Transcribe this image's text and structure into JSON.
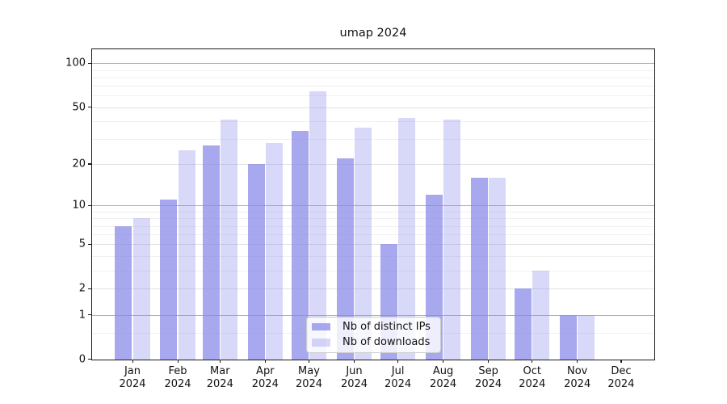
{
  "title": "umap 2024",
  "legend": {
    "items": [
      {
        "label": "Nb of distinct IPs",
        "series": "ips"
      },
      {
        "label": "Nb of downloads",
        "series": "downloads"
      }
    ]
  },
  "y_axis": {
    "tick_values": [
      0,
      1,
      2,
      5,
      10,
      20,
      50,
      100
    ],
    "tick_labels": [
      "0",
      "1",
      "2",
      "5",
      "10",
      "20",
      "50",
      "100"
    ]
  },
  "x_axis": {
    "months": [
      "Jan",
      "Feb",
      "Mar",
      "Apr",
      "May",
      "Jun",
      "Jul",
      "Aug",
      "Sep",
      "Oct",
      "Nov",
      "Dec"
    ],
    "year": "2024"
  },
  "colors": {
    "ips": "rgba(134,134,232,0.72)",
    "downloads": "rgba(134,134,232,0.32)",
    "grid_major": "#b0b0b0",
    "grid_mid": "#e2e2e2",
    "grid_minor": "#f0f0f0"
  },
  "chart_data": {
    "type": "bar",
    "title": "umap 2024",
    "categories": [
      "Jan 2024",
      "Feb 2024",
      "Mar 2024",
      "Apr 2024",
      "May 2024",
      "Jun 2024",
      "Jul 2024",
      "Aug 2024",
      "Sep 2024",
      "Oct 2024",
      "Nov 2024",
      "Dec 2024"
    ],
    "series": [
      {
        "name": "Nb of distinct IPs",
        "key": "ips",
        "values": [
          7,
          11,
          27,
          20,
          34,
          22,
          5,
          12,
          16,
          2,
          1,
          0
        ]
      },
      {
        "name": "Nb of downloads",
        "key": "downloads",
        "values": [
          8,
          25,
          41,
          28,
          64,
          36,
          42,
          41,
          16,
          3,
          1,
          0
        ]
      }
    ],
    "xlabel": "",
    "ylabel": "",
    "yscale": "log1p",
    "yticks": [
      0,
      1,
      2,
      5,
      10,
      20,
      50,
      100
    ],
    "ylim": [
      0,
      124
    ],
    "grid": true,
    "legend_position": "lower center"
  }
}
